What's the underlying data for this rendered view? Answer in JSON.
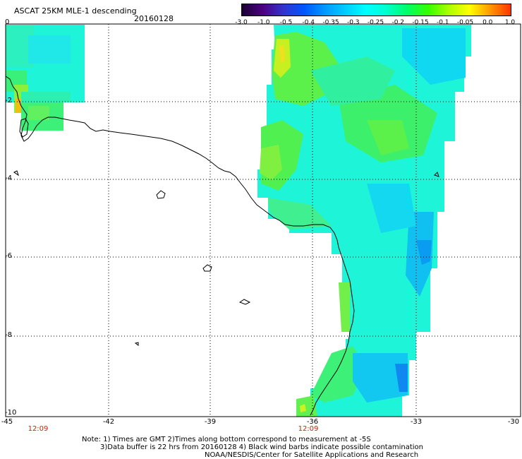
{
  "header": {
    "title": "ASCAT 25KM MLE-1 descending",
    "date": "20160128"
  },
  "colorbar": {
    "labels": [
      "-3.0",
      "-1.0",
      "-0.5",
      "-0.4",
      "-0.35",
      "-0.3",
      "-0.25",
      "-0.2",
      "-0.15",
      "-0.1",
      "-0.05",
      "0.0",
      "1.0"
    ],
    "colors": [
      "#1a0033",
      "#4b0082",
      "#3333cc",
      "#0055ff",
      "#0099ff",
      "#00ccff",
      "#00ffff",
      "#00ffcc",
      "#00ff66",
      "#33ff00",
      "#aaff00",
      "#ffff00",
      "#ff9900",
      "#ff3300"
    ]
  },
  "axes": {
    "y_labels": [
      "0",
      "-2",
      "-4",
      "-6",
      "-8",
      "-10"
    ],
    "x_labels": [
      "-45",
      "-42",
      "-39",
      "-36",
      "-33",
      "-30"
    ]
  },
  "times": [
    "12:09",
    "12:09"
  ],
  "notes": {
    "line1": "Note: 1) Times are GMT 2)Times along bottom correspond to measurement at -5S",
    "line2": "3)Data buffer is 22 hrs from 20160128 4) Black wind barbs indicate possible contamination",
    "line3": "NOAA/NESDIS/Center for Satellite Applications and Research"
  }
}
